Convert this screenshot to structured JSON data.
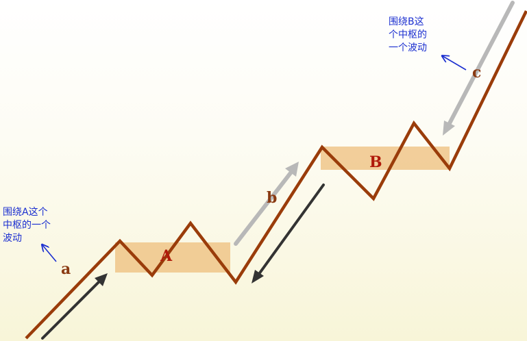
{
  "notes": {
    "note_a": "围绕A这个\n中枢的一个\n波动",
    "note_b": "围绕B这\n个中枢的\n一个波动"
  },
  "zones": {
    "a": "A",
    "b": "B"
  },
  "segments": {
    "a": "a",
    "b": "b",
    "c": "c"
  },
  "colors": {
    "main_path": "#9a3c0a",
    "zone_fill": "#eebf7c",
    "dark_arrow": "#333333",
    "gray_arrow": "#b5b5b5",
    "note_arrow": "#1b2fd0"
  }
}
